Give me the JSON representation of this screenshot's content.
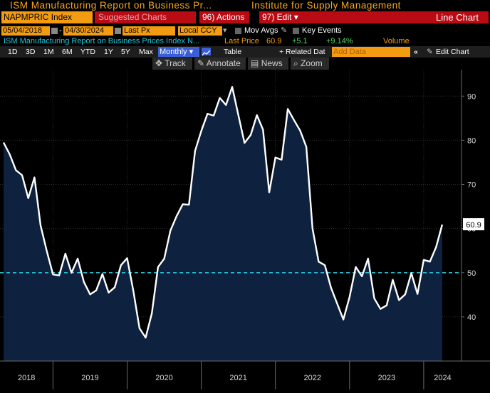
{
  "header": {
    "title_left": "ISM Manufacturing Report on Business Pr...",
    "title_right": "Institute for Supply Management"
  },
  "toolbar": {
    "ticker": "NAPMPRIC Index",
    "suggested": "Suggested Charts",
    "actions": "96) Actions ▾",
    "edit": "97) Edit ▾",
    "chart_kind": "Line Chart"
  },
  "range": {
    "start": "05/04/2018",
    "end": "04/30/2024",
    "field": "Last Px",
    "currency": "Local CCY",
    "mov_avgs": "Mov Avgs",
    "key_events": "Key Events"
  },
  "legend": {
    "series_name": "ISM Manufacturing Report on Business Prices Index N...",
    "last_price_label": "Last Price",
    "last_price": "60.9",
    "change": "+5.1",
    "change_pct": "+9.14%",
    "volume_label": "Volume"
  },
  "periods": [
    "1D",
    "3D",
    "1M",
    "6M",
    "YTD",
    "1Y",
    "5Y",
    "Max"
  ],
  "view": {
    "frequency": "Monthly",
    "table": "Table",
    "related": "+ Related Dat",
    "add_data_placeholder": "Add Data",
    "collapse": "«",
    "edit_chart": "Edit Chart"
  },
  "tools": {
    "track": "Track",
    "annotate": "Annotate",
    "news": "News",
    "zoom": "Zoom"
  },
  "colors": {
    "line": "#ffffff",
    "area_fill": "#0e2240",
    "reference_line": "#20c5d8",
    "accent": "#f39c12",
    "brand_red": "#b80b14"
  },
  "chart_data": {
    "type": "area",
    "x": [
      "2018-05",
      "2018-06",
      "2018-07",
      "2018-08",
      "2018-09",
      "2018-10",
      "2018-11",
      "2018-12",
      "2019-01",
      "2019-02",
      "2019-03",
      "2019-04",
      "2019-05",
      "2019-06",
      "2019-07",
      "2019-08",
      "2019-09",
      "2019-10",
      "2019-11",
      "2019-12",
      "2020-01",
      "2020-02",
      "2020-03",
      "2020-04",
      "2020-05",
      "2020-06",
      "2020-07",
      "2020-08",
      "2020-09",
      "2020-10",
      "2020-11",
      "2020-12",
      "2021-01",
      "2021-02",
      "2021-03",
      "2021-04",
      "2021-05",
      "2021-06",
      "2021-07",
      "2021-08",
      "2021-09",
      "2021-10",
      "2021-11",
      "2021-12",
      "2022-01",
      "2022-02",
      "2022-03",
      "2022-04",
      "2022-05",
      "2022-06",
      "2022-07",
      "2022-08",
      "2022-09",
      "2022-10",
      "2022-11",
      "2022-12",
      "2023-01",
      "2023-02",
      "2023-03",
      "2023-04",
      "2023-05",
      "2023-06",
      "2023-07",
      "2023-08",
      "2023-09",
      "2023-10",
      "2023-11",
      "2023-12",
      "2024-01",
      "2024-02",
      "2024-03",
      "2024-04"
    ],
    "y": [
      79.5,
      76.8,
      73.2,
      72.1,
      66.9,
      71.6,
      60.7,
      54.9,
      49.6,
      49.4,
      54.3,
      50.0,
      53.2,
      47.9,
      45.1,
      46.0,
      49.7,
      45.5,
      46.7,
      51.7,
      53.3,
      45.9,
      37.4,
      35.3,
      40.8,
      51.3,
      53.2,
      59.5,
      62.8,
      65.5,
      65.4,
      77.6,
      82.1,
      86.0,
      85.6,
      89.6,
      88.0,
      92.1,
      85.7,
      79.4,
      81.2,
      85.7,
      82.4,
      68.2,
      76.1,
      75.6,
      87.1,
      84.6,
      82.2,
      78.5,
      60.0,
      52.5,
      51.7,
      46.6,
      43.0,
      39.4,
      44.5,
      51.3,
      49.2,
      53.2,
      44.2,
      41.8,
      42.6,
      48.4,
      43.8,
      45.1,
      49.9,
      45.2,
      52.9,
      52.5,
      55.8,
      60.9
    ],
    "reference_line": 50,
    "ylim": [
      30,
      96
    ],
    "yticks": [
      40,
      50,
      60,
      70,
      80,
      90
    ],
    "x_year_labels": [
      "2018",
      "2019",
      "2020",
      "2021",
      "2022",
      "2023",
      "2024"
    ],
    "last_value_label": "60.9",
    "grid": true,
    "title": "",
    "xlabel": "",
    "ylabel": ""
  }
}
